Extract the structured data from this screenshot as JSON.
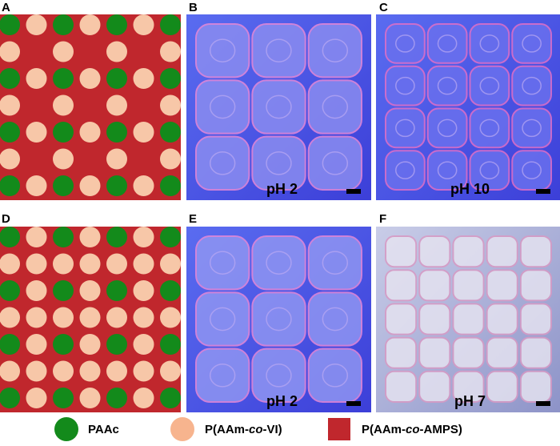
{
  "panels": [
    {
      "letter": "A"
    },
    {
      "letter": "B",
      "label": "pH 2"
    },
    {
      "letter": "C",
      "label": "pH 10"
    },
    {
      "letter": "D"
    },
    {
      "letter": "E",
      "label": "pH 2"
    },
    {
      "letter": "F",
      "label": "pH 7"
    }
  ],
  "legend": [
    {
      "label": "PAAc"
    },
    {
      "label_parts": [
        "P(AAm-",
        "co",
        "-VI)"
      ]
    },
    {
      "label_parts": [
        "P(AAm-",
        "co",
        "-AMPS)"
      ]
    }
  ]
}
